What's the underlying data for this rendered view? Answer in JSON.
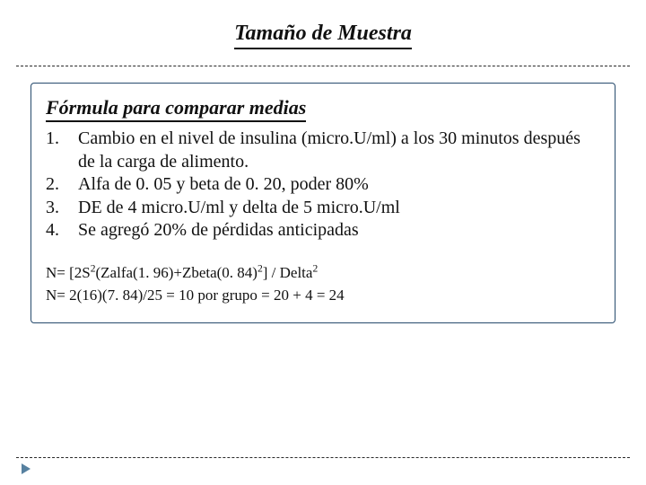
{
  "title": "Tamaño de Muestra",
  "box": {
    "subtitle": "Fórmula para comparar medias",
    "items": [
      {
        "num": "1.",
        "text": "Cambio en el nivel de insulina (micro.U/ml) a los 30 minutos después de la carga de alimento."
      },
      {
        "num": "2.",
        "text": "Alfa de 0. 05 y beta de 0. 20, poder 80%"
      },
      {
        "num": "3.",
        "text": "DE de 4 micro.U/ml y delta de 5 micro.U/ml"
      },
      {
        "num": "4.",
        "text": "Se agregó 20% de pérdidas anticipadas"
      }
    ],
    "formula": {
      "parts": [
        "N= [2S",
        "2",
        "(Zalfa(1. 96)+Zbeta(0. 84)",
        "2",
        "] / Delta",
        "2"
      ],
      "line2": "N= 2(16)(7. 84)/25 = 10 por grupo = 20 + 4 = 24"
    }
  },
  "style": {
    "title_fontsize": 24,
    "subtitle_fontsize": 22,
    "list_fontsize": 20,
    "formula_fontsize": 17,
    "text_color": "#111111",
    "box_border_color": "#274b6d",
    "dashed_rule_color": "#2a2a2a",
    "marker_color": "#3a6b8f",
    "background_color": "#ffffff"
  }
}
